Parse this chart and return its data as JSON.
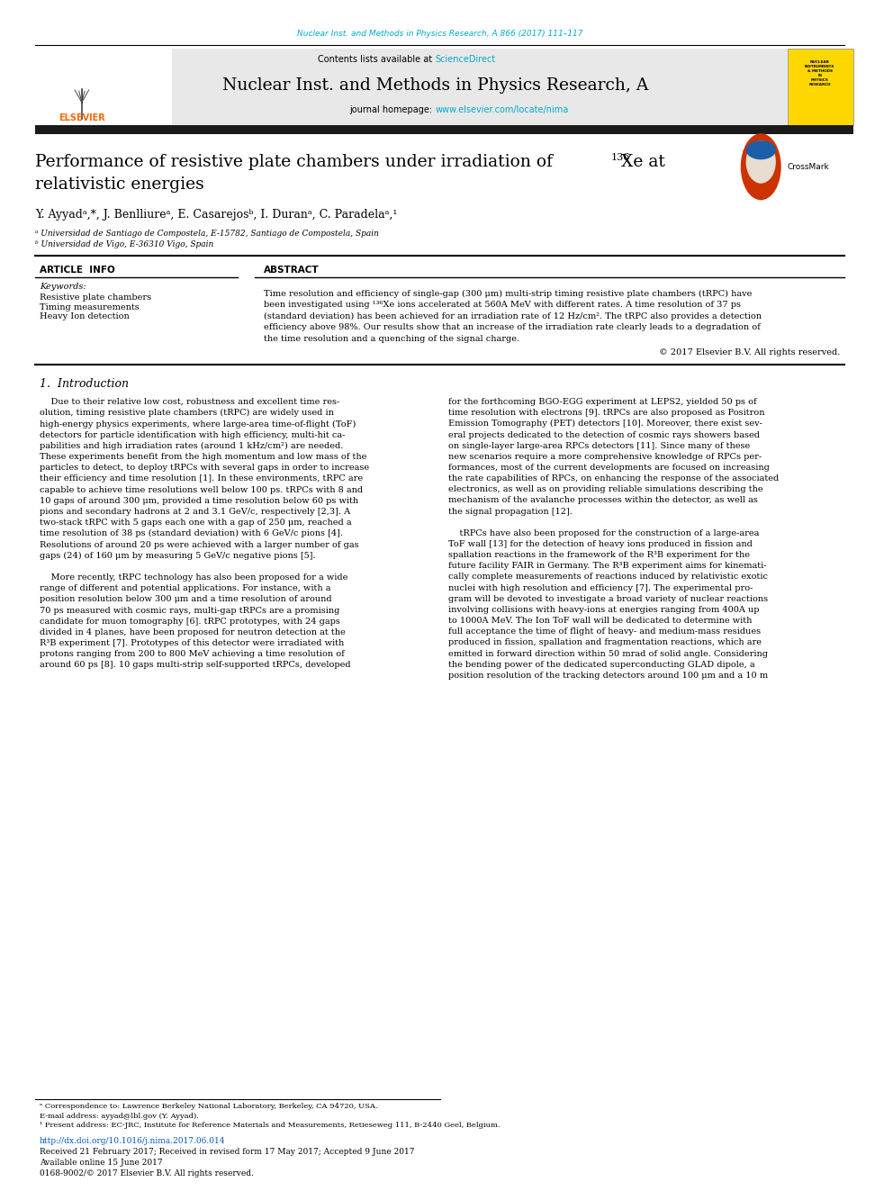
{
  "page_width": 9.92,
  "page_height": 13.23,
  "background_color": "#ffffff",
  "top_journal_ref": "Nuclear Inst. and Methods in Physics Research, A 866 (2017) 111–117",
  "top_journal_ref_color": "#00aacc",
  "header_bg_color": "#e8e8e8",
  "header_title": "Nuclear Inst. and Methods in Physics Research, A",
  "contents_text": "Contents lists available at ",
  "sciencedirect_text": "ScienceDirect",
  "sciencedirect_color": "#00aacc",
  "journal_homepage_text": "journal homepage: ",
  "journal_url": "www.elsevier.com/locate/nima",
  "journal_url_color": "#00aacc",
  "thick_bar_color": "#1a1a1a",
  "article_info_label": "ARTICLE  INFO",
  "abstract_label": "ABSTRACT",
  "keywords_label": "Keywords:",
  "keywords": [
    "Resistive plate chambers",
    "Timing measurements",
    "Heavy Ion detection"
  ],
  "copyright_text": "© 2017 Elsevier B.V. All rights reserved.",
  "footer_correspondence": "ᵃ Correspondence to: Lawrence Berkeley National Laboratory, Berkeley, CA 94720, USA.",
  "footer_email": "E-mail address: ayyad@lbl.gov (Y. Ayyad).",
  "footer_present": "¹ Present address: EC-JRC, Institute for Reference Materials and Measurements, Retieseweg 111, B-2440 Geel, Belgium.",
  "footer_doi": "http://dx.doi.org/10.1016/j.nima.2017.06.014",
  "footer_received": "Received 21 February 2017; Received in revised form 17 May 2017; Accepted 9 June 2017",
  "footer_available": "Available online 15 June 2017",
  "footer_issn": "0168-9002/© 2017 Elsevier B.V. All rights reserved.",
  "elsevier_color": "#ff6600",
  "crossmark_blue": "#1a5fa8",
  "crossmark_red": "#c0392b"
}
